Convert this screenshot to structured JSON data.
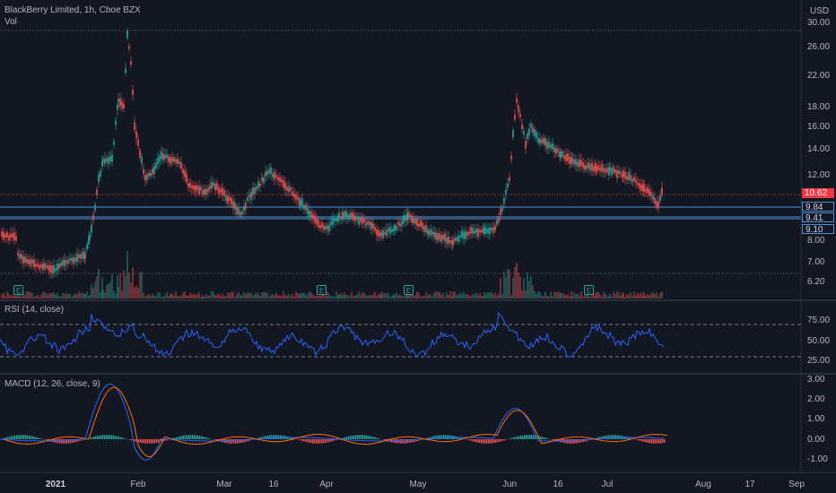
{
  "main_pane": {
    "title": "BlackBerry Limited, 1h, Cboe BZX",
    "volume_label": "Vol",
    "currency": "USD",
    "price_ticks": [
      "30.00",
      "26.00",
      "22.00",
      "18.00",
      "16.00",
      "14.00",
      "12.00",
      "8.00",
      "7.00",
      "6.20"
    ],
    "last_price": "10.62",
    "levels": [
      "9.84",
      "9.41",
      "9.10"
    ],
    "earnings_marker": "E",
    "colors": {
      "up": "#26a69a",
      "down": "#ef5350",
      "level_line": "#4a90d9",
      "last_price": "#f23645"
    }
  },
  "rsi_pane": {
    "title": "RSI (14, close)",
    "ticks": [
      "75.00",
      "50.00",
      "25.00"
    ],
    "line_color": "#2962ff"
  },
  "macd_pane": {
    "title": "MACD (12, 26, close, 9)",
    "ticks": [
      "3.00",
      "2.00",
      "1.00",
      "0.00",
      "-1.00"
    ],
    "macd_color": "#2962ff",
    "signal_color": "#ff6d00"
  },
  "time_axis": {
    "labels": [
      "2021",
      "Feb",
      "Mar",
      "16",
      "Apr",
      "May",
      "Jun",
      "16",
      "Jul",
      "Aug",
      "17",
      "Sep"
    ]
  }
}
